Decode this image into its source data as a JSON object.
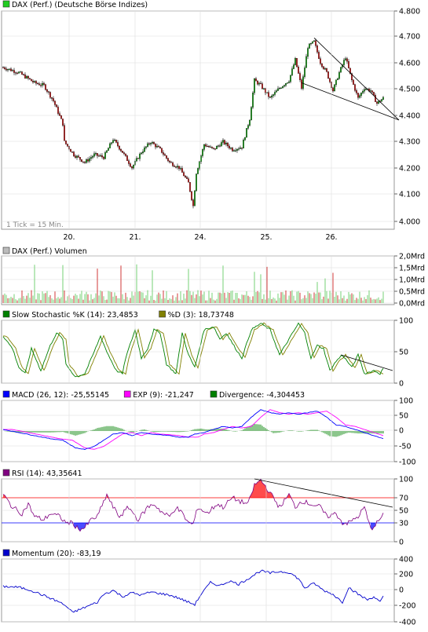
{
  "panels": [
    {
      "key": "price",
      "legend": [
        {
          "label": "DAX (Perf.) (Deutsche Börse Indizes)",
          "color": "#22cc22"
        }
      ],
      "y_ticks": [
        "4.800",
        "4.700",
        "4.600",
        "4.500",
        "4.400",
        "4.300",
        "4.200",
        "4.100",
        "4.000"
      ],
      "note": "1 Tick = 15 Min.",
      "x_ticks": [
        "20.",
        "21.",
        "24.",
        "25.",
        "26."
      ]
    },
    {
      "key": "volume",
      "legend": [
        {
          "label": "DAX (Perf.) Volumen",
          "color": "#bbbbbb"
        }
      ],
      "y_ticks": [
        "2,0Mrd",
        "1,5Mrd",
        "1,0Mrd",
        "0,5Mrd",
        "0,0Mrd"
      ]
    },
    {
      "key": "stochastic",
      "legend": [
        {
          "label": "Slow Stochastic %K (14): 23,4853",
          "color": "#008000"
        },
        {
          "label": "%D (3): 18,73748",
          "color": "#808000"
        }
      ],
      "y_ticks": [
        "100",
        "50",
        "0"
      ]
    },
    {
      "key": "macd",
      "legend": [
        {
          "label": "MACD (26, 12): -25,55145",
          "color": "#0000ff"
        },
        {
          "label": "EXP (9): -21,247",
          "color": "#ff00ff"
        },
        {
          "label": "Divergence: -4,304453",
          "color": "#008000"
        }
      ],
      "y_ticks": [
        "100",
        "50",
        "0",
        "-50",
        "-100"
      ]
    },
    {
      "key": "rsi",
      "legend": [
        {
          "label": "RSI (14): 43,35641",
          "color": "#800080"
        }
      ],
      "y_ticks": [
        "100",
        "70",
        "50",
        "30",
        "0"
      ]
    },
    {
      "key": "momentum",
      "legend": [
        {
          "label": "Momentum (20): -83,19",
          "color": "#0000cc"
        }
      ],
      "y_ticks": [
        "400",
        "200",
        "0",
        "-200",
        "-400"
      ]
    }
  ],
  "colors": {
    "up": "#22aa22",
    "down": "#cc2222",
    "wick": "#000000",
    "trendline": "#000000",
    "rsi_over": "#ff0000",
    "rsi_under": "#0000ff",
    "grid": "#dddddd"
  },
  "chart_data": [
    {
      "type": "candlestick",
      "title": "DAX (Perf.) (Deutsche Börse Indizes)",
      "x_labels": [
        "20.",
        "21.",
        "24.",
        "25.",
        "26."
      ],
      "ylim": [
        3980,
        4800
      ],
      "y_ticks": [
        4000,
        4100,
        4200,
        4300,
        4400,
        4500,
        4600,
        4700,
        4800
      ],
      "anchors": [
        [
          0,
          4580
        ],
        [
          10,
          4560
        ],
        [
          20,
          4520
        ],
        [
          26,
          4510
        ],
        [
          32,
          4450
        ],
        [
          38,
          4360
        ],
        [
          39,
          4290
        ],
        [
          45,
          4240
        ],
        [
          52,
          4210
        ],
        [
          58,
          4240
        ],
        [
          64,
          4230
        ],
        [
          70,
          4300
        ],
        [
          76,
          4250
        ],
        [
          82,
          4190
        ],
        [
          88,
          4250
        ],
        [
          94,
          4290
        ],
        [
          100,
          4260
        ],
        [
          106,
          4210
        ],
        [
          112,
          4190
        ],
        [
          118,
          4130
        ],
        [
          121,
          4040
        ],
        [
          123,
          4170
        ],
        [
          128,
          4280
        ],
        [
          134,
          4260
        ],
        [
          140,
          4290
        ],
        [
          146,
          4260
        ],
        [
          152,
          4270
        ],
        [
          157,
          4380
        ],
        [
          160,
          4530
        ],
        [
          164,
          4510
        ],
        [
          170,
          4460
        ],
        [
          176,
          4500
        ],
        [
          182,
          4530
        ],
        [
          186,
          4610
        ],
        [
          190,
          4500
        ],
        [
          194,
          4660
        ],
        [
          198,
          4680
        ],
        [
          202,
          4600
        ],
        [
          206,
          4560
        ],
        [
          210,
          4490
        ],
        [
          214,
          4560
        ],
        [
          218,
          4620
        ],
        [
          222,
          4530
        ],
        [
          226,
          4460
        ],
        [
          230,
          4500
        ],
        [
          234,
          4490
        ],
        [
          238,
          4440
        ],
        [
          242,
          4460
        ]
      ],
      "trendlines": [
        [
          [
            198,
            4695
          ],
          [
            252,
            4375
          ]
        ],
        [
          [
            190,
            4520
          ],
          [
            252,
            4375
          ]
        ]
      ],
      "last_index": 242
    },
    {
      "type": "bar",
      "title": "DAX (Perf.) Volumen",
      "ylim": [
        0,
        2.0
      ],
      "unit": "Mrd",
      "spike_indices": [
        20,
        38,
        60,
        75,
        85,
        95,
        118,
        140,
        160,
        164,
        168,
        200,
        205,
        210
      ]
    },
    {
      "type": "line",
      "title": "Slow Stochastic",
      "ylim": [
        0,
        100
      ],
      "series": [
        {
          "name": "%K (14)",
          "last": 23.4853
        },
        {
          "name": "%D (3)",
          "last": 18.73748
        }
      ],
      "anchors": [
        [
          0,
          75
        ],
        [
          6,
          55
        ],
        [
          10,
          25
        ],
        [
          14,
          15
        ],
        [
          18,
          55
        ],
        [
          24,
          20
        ],
        [
          30,
          60
        ],
        [
          34,
          80
        ],
        [
          38,
          70
        ],
        [
          40,
          30
        ],
        [
          46,
          10
        ],
        [
          52,
          15
        ],
        [
          58,
          50
        ],
        [
          62,
          75
        ],
        [
          66,
          50
        ],
        [
          72,
          20
        ],
        [
          76,
          15
        ],
        [
          78,
          40
        ],
        [
          84,
          85
        ],
        [
          88,
          40
        ],
        [
          92,
          55
        ],
        [
          96,
          85
        ],
        [
          100,
          80
        ],
        [
          104,
          30
        ],
        [
          110,
          15
        ],
        [
          114,
          80
        ],
        [
          118,
          45
        ],
        [
          122,
          25
        ],
        [
          128,
          85
        ],
        [
          134,
          90
        ],
        [
          138,
          70
        ],
        [
          142,
          80
        ],
        [
          148,
          55
        ],
        [
          152,
          40
        ],
        [
          158,
          85
        ],
        [
          164,
          95
        ],
        [
          170,
          85
        ],
        [
          176,
          45
        ],
        [
          182,
          70
        ],
        [
          188,
          95
        ],
        [
          192,
          80
        ],
        [
          196,
          40
        ],
        [
          200,
          60
        ],
        [
          204,
          55
        ],
        [
          208,
          20
        ],
        [
          212,
          35
        ],
        [
          216,
          45
        ],
        [
          222,
          25
        ],
        [
          226,
          45
        ],
        [
          230,
          15
        ],
        [
          236,
          20
        ],
        [
          240,
          15
        ],
        [
          242,
          23
        ]
      ],
      "trendline": [
        [
          215,
          45
        ],
        [
          248,
          20
        ]
      ]
    },
    {
      "type": "line",
      "title": "MACD",
      "ylim": [
        -100,
        100
      ],
      "series": [
        {
          "name": "MACD (26, 12)",
          "last": -25.55145
        },
        {
          "name": "EXP (9)",
          "last": -21.247
        },
        {
          "name": "Divergence",
          "last": -4.304453
        }
      ],
      "anchors": [
        [
          0,
          5
        ],
        [
          10,
          -5
        ],
        [
          20,
          -15
        ],
        [
          30,
          -25
        ],
        [
          38,
          -30
        ],
        [
          46,
          -55
        ],
        [
          52,
          -60
        ],
        [
          58,
          -50
        ],
        [
          64,
          -30
        ],
        [
          70,
          -10
        ],
        [
          76,
          -5
        ],
        [
          82,
          -15
        ],
        [
          88,
          -5
        ],
        [
          94,
          -10
        ],
        [
          100,
          -12
        ],
        [
          106,
          -15
        ],
        [
          112,
          -20
        ],
        [
          118,
          -20
        ],
        [
          122,
          -10
        ],
        [
          128,
          -5
        ],
        [
          134,
          5
        ],
        [
          140,
          15
        ],
        [
          146,
          10
        ],
        [
          152,
          15
        ],
        [
          158,
          45
        ],
        [
          164,
          70
        ],
        [
          170,
          60
        ],
        [
          176,
          55
        ],
        [
          182,
          60
        ],
        [
          188,
          55
        ],
        [
          194,
          60
        ],
        [
          200,
          65
        ],
        [
          206,
          45
        ],
        [
          212,
          20
        ],
        [
          218,
          15
        ],
        [
          224,
          5
        ],
        [
          230,
          -5
        ],
        [
          236,
          -15
        ],
        [
          242,
          -25
        ]
      ]
    },
    {
      "type": "line",
      "title": "RSI (14)",
      "ylim": [
        0,
        100
      ],
      "reference_lines": [
        70,
        30
      ],
      "series": [
        {
          "name": "RSI (14)",
          "last": 43.35641
        }
      ],
      "anchors": [
        [
          0,
          75
        ],
        [
          6,
          55
        ],
        [
          12,
          45
        ],
        [
          16,
          60
        ],
        [
          20,
          40
        ],
        [
          26,
          35
        ],
        [
          30,
          45
        ],
        [
          36,
          40
        ],
        [
          40,
          30
        ],
        [
          44,
          30
        ],
        [
          48,
          20
        ],
        [
          52,
          22
        ],
        [
          56,
          35
        ],
        [
          60,
          40
        ],
        [
          66,
          75
        ],
        [
          70,
          55
        ],
        [
          74,
          40
        ],
        [
          80,
          55
        ],
        [
          86,
          35
        ],
        [
          92,
          55
        ],
        [
          96,
          60
        ],
        [
          102,
          45
        ],
        [
          106,
          40
        ],
        [
          110,
          55
        ],
        [
          114,
          45
        ],
        [
          118,
          30
        ],
        [
          121,
          28
        ],
        [
          124,
          55
        ],
        [
          130,
          45
        ],
        [
          136,
          60
        ],
        [
          140,
          55
        ],
        [
          146,
          70
        ],
        [
          150,
          65
        ],
        [
          156,
          60
        ],
        [
          160,
          90
        ],
        [
          164,
          98
        ],
        [
          168,
          85
        ],
        [
          172,
          70
        ],
        [
          176,
          55
        ],
        [
          182,
          75
        ],
        [
          186,
          55
        ],
        [
          190,
          65
        ],
        [
          196,
          60
        ],
        [
          202,
          55
        ],
        [
          206,
          40
        ],
        [
          212,
          45
        ],
        [
          216,
          30
        ],
        [
          220,
          30
        ],
        [
          226,
          40
        ],
        [
          230,
          55
        ],
        [
          234,
          20
        ],
        [
          238,
          30
        ],
        [
          242,
          43
        ]
      ],
      "trendline": [
        [
          160,
          100
        ],
        [
          248,
          55
        ]
      ]
    },
    {
      "type": "line",
      "title": "Momentum (20)",
      "ylim": [
        -400,
        400
      ],
      "series": [
        {
          "name": "Momentum (20)",
          "last": -83.19
        }
      ],
      "anchors": [
        [
          0,
          50
        ],
        [
          10,
          40
        ],
        [
          18,
          0
        ],
        [
          24,
          -50
        ],
        [
          30,
          -100
        ],
        [
          36,
          -150
        ],
        [
          40,
          -200
        ],
        [
          44,
          -280
        ],
        [
          48,
          -250
        ],
        [
          54,
          -200
        ],
        [
          60,
          -150
        ],
        [
          64,
          -50
        ],
        [
          70,
          0
        ],
        [
          76,
          -80
        ],
        [
          82,
          -30
        ],
        [
          88,
          -60
        ],
        [
          94,
          -20
        ],
        [
          100,
          -40
        ],
        [
          106,
          -60
        ],
        [
          112,
          -100
        ],
        [
          118,
          -150
        ],
        [
          122,
          -180
        ],
        [
          126,
          -50
        ],
        [
          132,
          100
        ],
        [
          138,
          60
        ],
        [
          144,
          120
        ],
        [
          150,
          80
        ],
        [
          156,
          150
        ],
        [
          160,
          200
        ],
        [
          164,
          250
        ],
        [
          170,
          220
        ],
        [
          176,
          240
        ],
        [
          182,
          230
        ],
        [
          188,
          150
        ],
        [
          192,
          30
        ],
        [
          198,
          90
        ],
        [
          204,
          0
        ],
        [
          210,
          -50
        ],
        [
          216,
          -150
        ],
        [
          220,
          40
        ],
        [
          226,
          -50
        ],
        [
          232,
          -120
        ],
        [
          236,
          -80
        ],
        [
          240,
          -150
        ],
        [
          242,
          -83
        ]
      ]
    }
  ]
}
